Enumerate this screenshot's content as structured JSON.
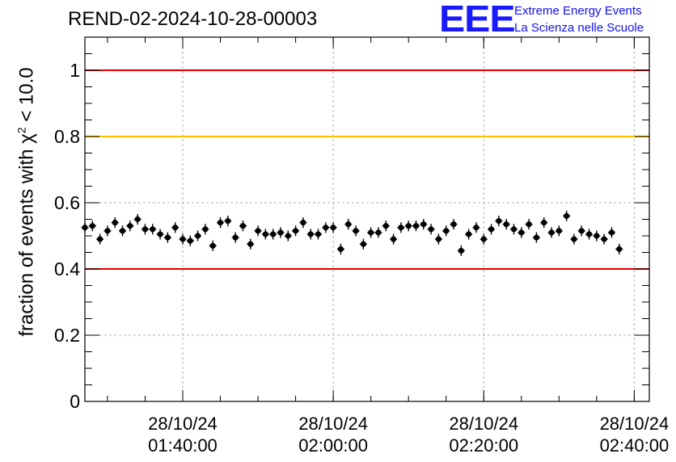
{
  "header": {
    "title": "REND-02-2024-10-28-00003",
    "logo_mark": "EEE",
    "logo_line1": "Extreme Energy Events",
    "logo_line2": "La Scienza nelle Scuole"
  },
  "colors": {
    "logo": "#1a1aff",
    "red_line": "#e00000",
    "yellow_line": "#ffc000",
    "points": "#000000",
    "grid": "#b0b0b0"
  },
  "chart_data": {
    "type": "scatter",
    "title": "REND-02-2024-10-28-00003",
    "ylabel_main": "fraction of events with χ",
    "ylabel_sup": "2",
    "ylabel_tail": " < 10.0",
    "xlabel": "",
    "x_axis": "time",
    "xlim": [
      "2024-10-28 01:27:00",
      "2024-10-28 02:42:00"
    ],
    "ylim": [
      0,
      1.1
    ],
    "grid": true,
    "y_ticks": [
      {
        "value": 0,
        "label": "0"
      },
      {
        "value": 0.2,
        "label": "0.2"
      },
      {
        "value": 0.4,
        "label": "0.4"
      },
      {
        "value": 0.6,
        "label": "0.6"
      },
      {
        "value": 0.8,
        "label": "0.8"
      },
      {
        "value": 1.0,
        "label": "1"
      }
    ],
    "x_ticks": [
      {
        "value": "2024-10-28 01:40:00",
        "date": "28/10/24",
        "time": "01:40:00"
      },
      {
        "value": "2024-10-28 02:00:00",
        "date": "28/10/24",
        "time": "02:00:00"
      },
      {
        "value": "2024-10-28 02:20:00",
        "date": "28/10/24",
        "time": "02:20:00"
      },
      {
        "value": "2024-10-28 02:40:00",
        "date": "28/10/24",
        "time": "02:40:00"
      }
    ],
    "reference_lines": [
      {
        "y": 1.0,
        "color": "#e00000"
      },
      {
        "y": 0.8,
        "color": "#ffc000"
      },
      {
        "y": 0.4,
        "color": "#e00000"
      }
    ],
    "series": [
      {
        "x_start": "2024-10-28 01:27:00",
        "x_step_seconds": 60,
        "y_error": 0.016,
        "values": [
          0.525,
          0.53,
          0.49,
          0.515,
          0.54,
          0.515,
          0.53,
          0.55,
          0.52,
          0.52,
          0.505,
          0.495,
          0.525,
          0.49,
          0.485,
          0.5,
          0.52,
          0.47,
          0.54,
          0.545,
          0.495,
          0.53,
          0.475,
          0.515,
          0.505,
          0.505,
          0.51,
          0.5,
          0.515,
          0.54,
          0.505,
          0.505,
          0.525,
          0.525,
          0.46,
          0.535,
          0.515,
          0.475,
          0.51,
          0.51,
          0.53,
          0.49,
          0.525,
          0.53,
          0.53,
          0.535,
          0.52,
          0.49,
          0.515,
          0.535,
          0.455,
          0.505,
          0.525,
          0.49,
          0.52,
          0.545,
          0.535,
          0.52,
          0.51,
          0.535,
          0.495,
          0.54,
          0.51,
          0.515,
          0.56,
          0.49,
          0.515,
          0.505,
          0.5,
          0.49,
          0.51,
          0.46
        ]
      }
    ]
  }
}
